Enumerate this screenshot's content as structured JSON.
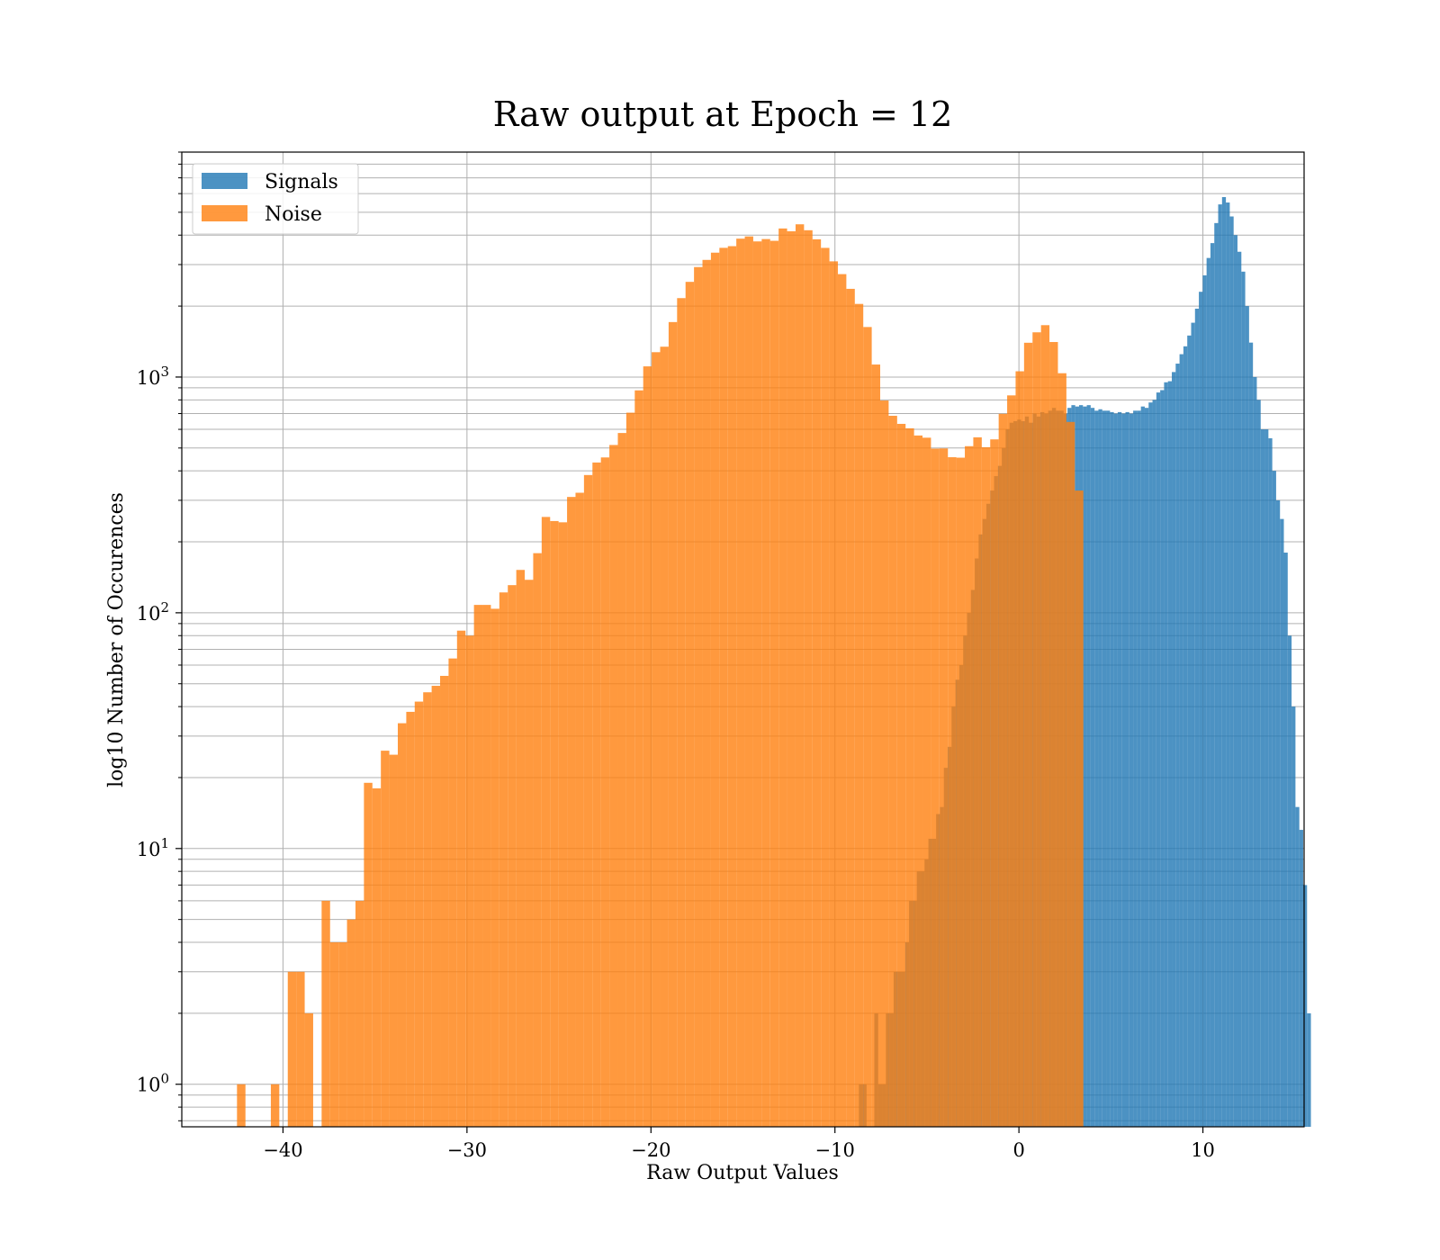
{
  "chart_data": {
    "type": "bar",
    "title": "Raw output at Epoch = 12",
    "xlabel": "Raw Output Values",
    "ylabel": "log10 Number of Occurences",
    "xlim": [
      -45.5,
      15.5
    ],
    "ylim": [
      0.66,
      9000
    ],
    "yscale": "log",
    "grid": true,
    "grid_minor_y": true,
    "legend_position": "top-left",
    "xticks": [
      {
        "value": -40,
        "label": "−40"
      },
      {
        "value": -30,
        "label": "−30"
      },
      {
        "value": -20,
        "label": "−20"
      },
      {
        "value": -10,
        "label": "−10"
      },
      {
        "value": 0,
        "label": "0"
      },
      {
        "value": 10,
        "label": "10"
      }
    ],
    "yticks": [
      {
        "value": 1,
        "base": "10",
        "exp": "0"
      },
      {
        "value": 10,
        "base": "10",
        "exp": "1"
      },
      {
        "value": 100,
        "base": "10",
        "exp": "2"
      },
      {
        "value": 1000,
        "base": "10",
        "exp": "3"
      }
    ],
    "series": [
      {
        "name": "Signals",
        "color": "#1f77b4",
        "opacity": 0.8,
        "bin_start": -8.7,
        "bin_width": 0.21,
        "values": [
          1,
          1,
          0,
          0,
          2,
          1,
          1,
          2,
          2,
          3,
          3,
          3,
          4,
          6,
          6,
          8,
          8,
          9,
          11,
          11,
          14,
          15,
          22,
          27,
          40,
          52,
          60,
          80,
          100,
          125,
          170,
          215,
          250,
          290,
          330,
          380,
          420,
          500,
          600,
          640,
          650,
          660,
          650,
          680,
          640,
          700,
          680,
          710,
          700,
          720,
          740,
          720,
          720,
          700,
          740,
          760,
          750,
          760,
          750,
          760,
          740,
          720,
          730,
          720,
          720,
          710,
          700,
          710,
          700,
          710,
          700,
          720,
          720,
          750,
          740,
          780,
          800,
          860,
          880,
          950,
          960,
          1050,
          1140,
          1250,
          1350,
          1500,
          1700,
          1950,
          2300,
          2700,
          3200,
          3700,
          4500,
          5400,
          5800,
          5500,
          4800,
          4000,
          3400,
          2800,
          2000,
          1400,
          1000,
          800,
          600,
          600,
          550,
          400,
          300,
          250,
          180,
          80,
          40,
          15,
          12,
          7,
          2
        ]
      },
      {
        "name": "Noise",
        "color": "#ff7f0e",
        "opacity": 0.8,
        "bin_start": -42.5,
        "bin_width": 0.46,
        "values": [
          1,
          0,
          0,
          0,
          1,
          0,
          3,
          3,
          2,
          0,
          6,
          4,
          4,
          5,
          6,
          19,
          18,
          26,
          25,
          34,
          38,
          42,
          46,
          49,
          54,
          64,
          84,
          80,
          108,
          108,
          104,
          122,
          131,
          152,
          138,
          179,
          255,
          245,
          242,
          310,
          323,
          384,
          434,
          456,
          515,
          579,
          706,
          878,
          1110,
          1275,
          1345,
          1711,
          2162,
          2534,
          2928,
          3140,
          3370,
          3533,
          3591,
          3864,
          3950,
          3762,
          3849,
          3784,
          4268,
          4153,
          4446,
          4195,
          3840,
          3531,
          3096,
          2733,
          2367,
          2043,
          1630,
          1130,
          795,
          685,
          633,
          606,
          565,
          553,
          497,
          498,
          457,
          455,
          509,
          555,
          504,
          544,
          698,
          836,
          1058,
          1398,
          1548,
          1660,
          1408,
          1038,
          645,
          330
        ]
      }
    ]
  }
}
